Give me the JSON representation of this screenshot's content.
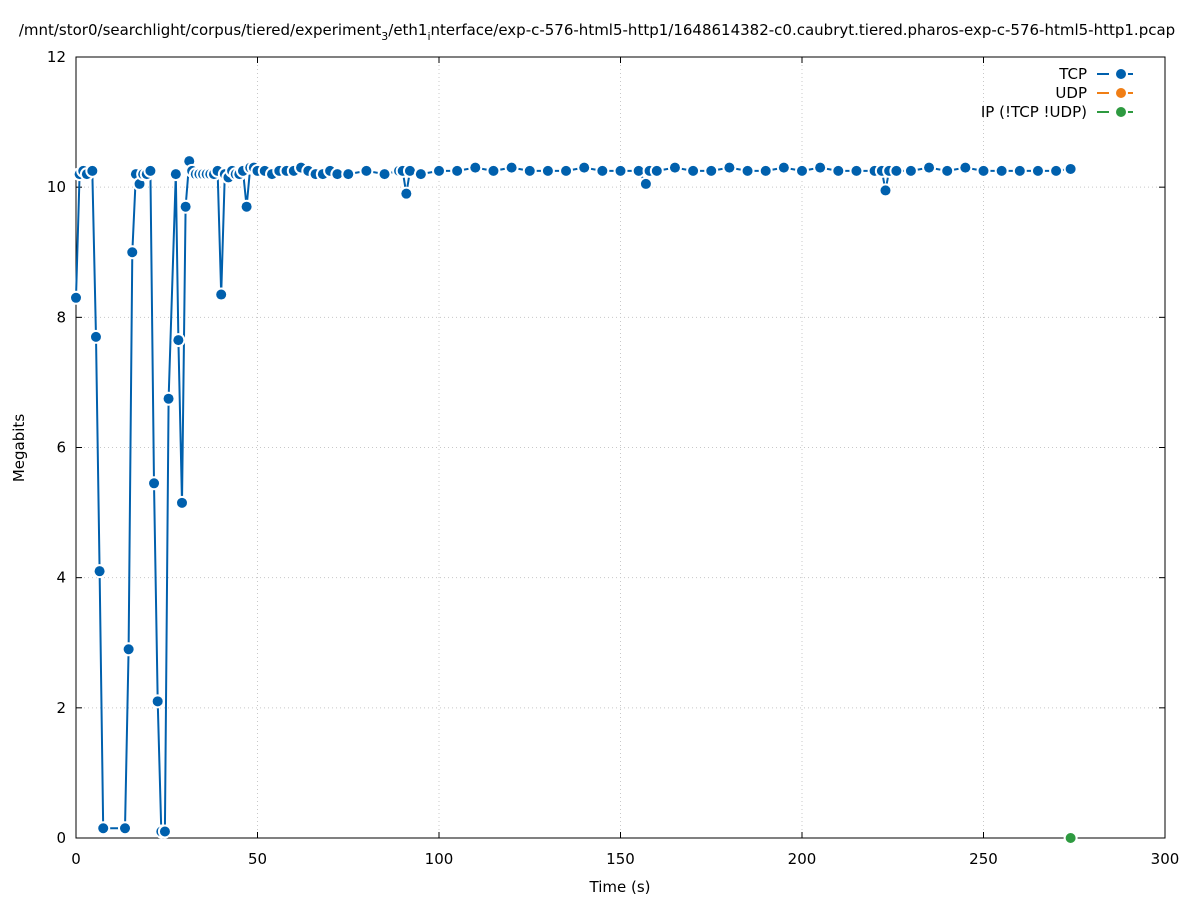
{
  "chart_data": {
    "type": "line",
    "title_main": "/mnt/stor0/searchlight/corpus/tiered/experiment",
    "title_sub1": "3",
    "title_mid": "/eth1",
    "title_sub2": "i",
    "title_end": "nterface/exp-c-576-html5-http1/1648614382-c0.caubryt.tiered.pharos-exp-c-576-html5-http1.pcap",
    "xlabel": "Time (s)",
    "ylabel": "Megabits",
    "xlim": [
      0,
      300
    ],
    "ylim": [
      0,
      12
    ],
    "xticks": [
      0,
      50,
      100,
      150,
      200,
      250,
      300
    ],
    "yticks": [
      0,
      2,
      4,
      6,
      8,
      10,
      12
    ],
    "grid": true,
    "legend_position": "top-right",
    "series": [
      {
        "name": "TCP",
        "color": "#0060ad",
        "points": [
          [
            0,
            8.3
          ],
          [
            1,
            10.2
          ],
          [
            2,
            10.25
          ],
          [
            3,
            10.2
          ],
          [
            4.5,
            10.25
          ],
          [
            5.5,
            7.7
          ],
          [
            6.5,
            4.1
          ],
          [
            7.5,
            0.15
          ],
          [
            13.5,
            0.15
          ],
          [
            14.5,
            2.9
          ],
          [
            15.5,
            9.0
          ],
          [
            16.5,
            10.2
          ],
          [
            17.5,
            10.05
          ],
          [
            18.5,
            10.2
          ],
          [
            19.5,
            10.2
          ],
          [
            20.5,
            10.25
          ],
          [
            21.5,
            5.45
          ],
          [
            22.5,
            2.1
          ],
          [
            23.5,
            0.1
          ],
          [
            24.5,
            0.1
          ],
          [
            25.5,
            6.75
          ],
          [
            27.5,
            10.2
          ],
          [
            28.2,
            7.65
          ],
          [
            29.2,
            5.15
          ],
          [
            30.2,
            9.7
          ],
          [
            31.2,
            10.4
          ],
          [
            32,
            10.25
          ],
          [
            33,
            10.2
          ],
          [
            34,
            10.2
          ],
          [
            35,
            10.2
          ],
          [
            36,
            10.2
          ],
          [
            37,
            10.2
          ],
          [
            38,
            10.2
          ],
          [
            39,
            10.25
          ],
          [
            40,
            8.35
          ],
          [
            41,
            10.2
          ],
          [
            42,
            10.15
          ],
          [
            43,
            10.25
          ],
          [
            44,
            10.2
          ],
          [
            45,
            10.2
          ],
          [
            46,
            10.25
          ],
          [
            47,
            9.7
          ],
          [
            48,
            10.3
          ],
          [
            49,
            10.3
          ],
          [
            50,
            10.25
          ],
          [
            52,
            10.25
          ],
          [
            54,
            10.2
          ],
          [
            56,
            10.25
          ],
          [
            58,
            10.25
          ],
          [
            60,
            10.25
          ],
          [
            62,
            10.3
          ],
          [
            64,
            10.25
          ],
          [
            66,
            10.2
          ],
          [
            68,
            10.2
          ],
          [
            70,
            10.25
          ],
          [
            72,
            10.2
          ],
          [
            75,
            10.2
          ],
          [
            80,
            10.25
          ],
          [
            85,
            10.2
          ],
          [
            89,
            10.25
          ],
          [
            90,
            10.25
          ],
          [
            91,
            9.9
          ],
          [
            92,
            10.25
          ],
          [
            95,
            10.2
          ],
          [
            100,
            10.25
          ],
          [
            105,
            10.25
          ],
          [
            110,
            10.3
          ],
          [
            115,
            10.25
          ],
          [
            120,
            10.3
          ],
          [
            125,
            10.25
          ],
          [
            130,
            10.25
          ],
          [
            135,
            10.25
          ],
          [
            140,
            10.3
          ],
          [
            145,
            10.25
          ],
          [
            150,
            10.25
          ],
          [
            155,
            10.25
          ],
          [
            157,
            10.05
          ],
          [
            158,
            10.25
          ],
          [
            160,
            10.25
          ],
          [
            165,
            10.3
          ],
          [
            170,
            10.25
          ],
          [
            175,
            10.25
          ],
          [
            180,
            10.3
          ],
          [
            185,
            10.25
          ],
          [
            190,
            10.25
          ],
          [
            195,
            10.3
          ],
          [
            200,
            10.25
          ],
          [
            205,
            10.3
          ],
          [
            210,
            10.25
          ],
          [
            215,
            10.25
          ],
          [
            220,
            10.25
          ],
          [
            222,
            10.25
          ],
          [
            223,
            9.95
          ],
          [
            224,
            10.25
          ],
          [
            226,
            10.25
          ],
          [
            230,
            10.25
          ],
          [
            235,
            10.3
          ],
          [
            240,
            10.25
          ],
          [
            245,
            10.3
          ],
          [
            250,
            10.25
          ],
          [
            255,
            10.25
          ],
          [
            260,
            10.25
          ],
          [
            265,
            10.25
          ],
          [
            270,
            10.25
          ],
          [
            274,
            10.28
          ]
        ]
      },
      {
        "name": "UDP",
        "color": "#f07e15",
        "points": []
      },
      {
        "name": "IP (!TCP  !UDP)",
        "color": "#2e9a40",
        "points": [
          [
            274,
            0
          ]
        ]
      }
    ]
  }
}
